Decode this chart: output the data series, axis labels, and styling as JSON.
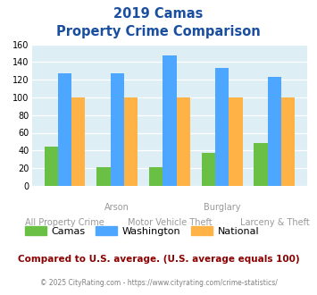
{
  "title_line1": "2019 Camas",
  "title_line2": "Property Crime Comparison",
  "categories": [
    "All Property Crime",
    "Arson",
    "Motor Vehicle Theft",
    "Burglary",
    "Larceny & Theft"
  ],
  "top_labels": [
    "",
    "Arson",
    "",
    "Burglary",
    ""
  ],
  "bottom_labels": [
    "All Property Crime",
    "",
    "Motor Vehicle Theft",
    "",
    "Larceny & Theft"
  ],
  "camas": [
    44,
    21,
    21,
    37,
    48
  ],
  "washington": [
    127,
    127,
    147,
    133,
    123
  ],
  "national": [
    100,
    100,
    100,
    100,
    100
  ],
  "camas_color": "#6abf45",
  "washington_color": "#4da6ff",
  "national_color": "#ffb347",
  "bg_color": "#ddeef5",
  "ylim": [
    0,
    160
  ],
  "yticks": [
    0,
    20,
    40,
    60,
    80,
    100,
    120,
    140,
    160
  ],
  "title_color": "#1a4fa0",
  "footer_text": "Compared to U.S. average. (U.S. average equals 100)",
  "copyright_text": "© 2025 CityRating.com - https://www.cityrating.com/crime-statistics/",
  "footer_color": "#8b0000",
  "copyright_color": "#808080",
  "xlabel_color": "#999999"
}
